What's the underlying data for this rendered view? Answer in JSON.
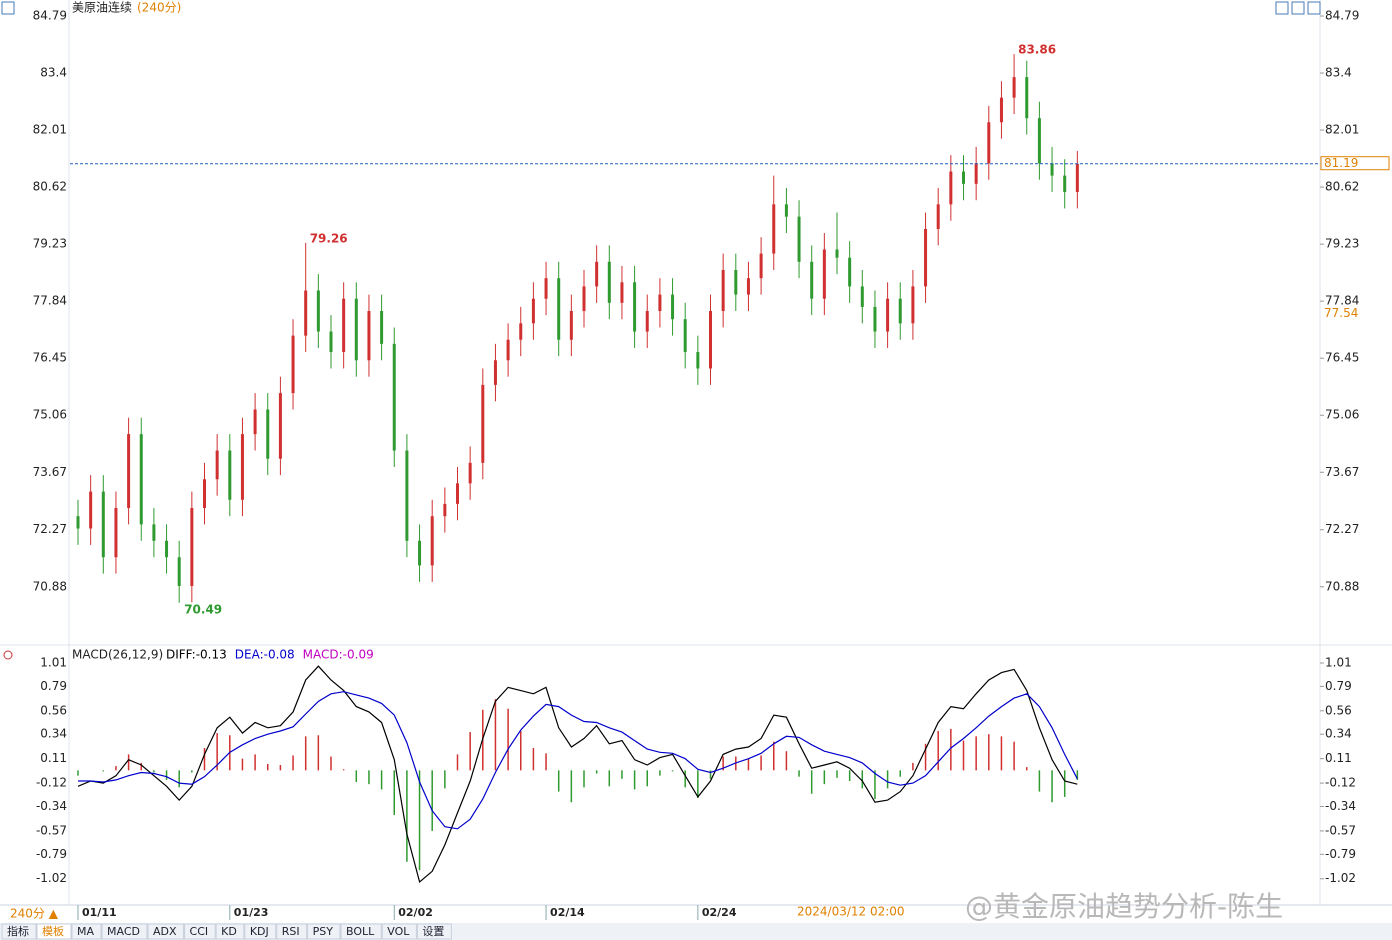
{
  "chart_data": [
    {
      "type": "candlestick",
      "title": "美原油连续",
      "subtitle": "(240分)",
      "up_color": "#d03030",
      "down_color": "#2f9a2f",
      "ylim": [
        70.07,
        84.79
      ],
      "yticks": [
        84.79,
        83.4,
        82.01,
        80.62,
        79.23,
        77.84,
        76.45,
        75.06,
        73.67,
        72.27,
        70.88
      ],
      "current_price": 81.19,
      "cursor_price": 77.54,
      "categories": [
        "01/11",
        null,
        null,
        null,
        null,
        null,
        null,
        null,
        null,
        null,
        null,
        null,
        "01/23",
        null,
        null,
        null,
        null,
        null,
        null,
        null,
        null,
        null,
        null,
        null,
        null,
        "02/02",
        null,
        null,
        null,
        null,
        null,
        null,
        null,
        null,
        null,
        null,
        null,
        "02/14",
        null,
        null,
        null,
        null,
        null,
        null,
        null,
        null,
        null,
        null,
        null,
        "02/24",
        null,
        null,
        null,
        null,
        null,
        null,
        null,
        null,
        null,
        null,
        null,
        null,
        null,
        null,
        null,
        null,
        null,
        null,
        null,
        null,
        null,
        null,
        null,
        null,
        null,
        null,
        null,
        null,
        null,
        null
      ],
      "open": [
        72.6,
        72.3,
        73.2,
        71.6,
        72.8,
        74.6,
        72.4,
        72.0,
        71.6,
        70.9,
        72.8,
        73.5,
        74.2,
        73.0,
        74.6,
        75.2,
        74.0,
        75.6,
        77.0,
        78.1,
        77.1,
        76.6,
        77.9,
        76.4,
        77.6,
        76.8,
        74.2,
        72.0,
        71.4,
        72.6,
        72.9,
        73.4,
        73.9,
        75.8,
        76.4,
        76.9,
        77.3,
        77.9,
        78.4,
        76.9,
        77.6,
        78.2,
        78.8,
        77.8,
        78.3,
        77.1,
        77.6,
        78.0,
        77.4,
        76.6,
        76.2,
        77.6,
        78.6,
        78.0,
        78.4,
        79.0,
        80.2,
        79.9,
        78.8,
        77.9,
        79.1,
        78.9,
        78.2,
        77.7,
        77.1,
        77.9,
        77.3,
        78.2,
        79.6,
        80.2,
        81.0,
        80.7,
        81.2,
        82.2,
        82.8,
        83.3,
        82.3,
        81.2,
        80.9,
        80.5
      ],
      "high": [
        73.0,
        73.6,
        73.6,
        73.2,
        75.0,
        75.0,
        72.8,
        72.4,
        72.0,
        73.2,
        73.9,
        74.6,
        74.6,
        75.0,
        75.6,
        75.6,
        76.0,
        77.4,
        79.26,
        78.5,
        77.5,
        78.3,
        78.3,
        78.0,
        78.0,
        77.2,
        74.6,
        72.4,
        73.0,
        73.3,
        73.8,
        74.3,
        76.2,
        76.8,
        77.3,
        77.7,
        78.3,
        78.8,
        78.8,
        78.0,
        78.6,
        79.2,
        79.2,
        78.7,
        78.7,
        78.0,
        78.4,
        78.4,
        77.8,
        77.0,
        78.0,
        79.0,
        79.0,
        78.8,
        79.4,
        80.9,
        80.6,
        80.3,
        79.2,
        79.5,
        80.0,
        79.3,
        78.6,
        78.1,
        78.3,
        78.3,
        78.6,
        80.0,
        80.6,
        81.4,
        81.4,
        81.6,
        82.6,
        83.2,
        83.86,
        83.7,
        82.7,
        81.6,
        81.3,
        81.5
      ],
      "low": [
        71.9,
        71.9,
        71.2,
        71.2,
        72.4,
        72.0,
        71.6,
        71.2,
        70.49,
        70.5,
        72.4,
        73.1,
        72.6,
        72.6,
        74.2,
        73.6,
        73.6,
        75.2,
        76.6,
        76.7,
        76.2,
        76.2,
        76.0,
        76.0,
        76.4,
        73.8,
        71.6,
        71.0,
        71.0,
        72.2,
        72.5,
        73.0,
        73.5,
        75.4,
        76.0,
        76.5,
        76.9,
        77.5,
        76.5,
        76.5,
        77.2,
        77.8,
        77.4,
        77.4,
        76.7,
        76.7,
        77.2,
        77.0,
        76.2,
        75.8,
        75.8,
        77.2,
        77.6,
        77.6,
        78.0,
        78.6,
        79.5,
        78.4,
        77.5,
        77.5,
        78.5,
        77.8,
        77.3,
        76.7,
        76.7,
        76.9,
        76.9,
        77.8,
        79.2,
        79.8,
        80.3,
        80.3,
        80.8,
        81.8,
        82.4,
        81.9,
        80.8,
        80.5,
        80.1,
        80.1
      ],
      "close": [
        72.3,
        73.2,
        71.6,
        72.8,
        74.6,
        72.4,
        72.0,
        71.6,
        70.9,
        72.8,
        73.5,
        74.2,
        73.0,
        74.6,
        75.2,
        74.0,
        75.6,
        77.0,
        78.1,
        77.1,
        76.6,
        77.9,
        76.4,
        77.6,
        76.8,
        74.2,
        72.0,
        71.4,
        72.6,
        72.9,
        73.4,
        73.9,
        75.8,
        76.4,
        76.9,
        77.3,
        77.9,
        78.4,
        76.9,
        77.6,
        78.2,
        78.8,
        77.8,
        78.3,
        77.1,
        77.6,
        78.0,
        77.4,
        76.6,
        76.2,
        77.6,
        78.6,
        78.0,
        78.4,
        79.0,
        80.2,
        79.9,
        78.8,
        77.9,
        79.1,
        78.9,
        78.2,
        77.7,
        77.1,
        77.9,
        77.3,
        78.2,
        79.6,
        80.2,
        81.0,
        80.7,
        81.2,
        82.2,
        82.8,
        83.3,
        82.3,
        81.2,
        80.9,
        80.5,
        81.19
      ]
    },
    {
      "type": "macd",
      "title": "MACD(26,12,9)",
      "up_color": "#d03030",
      "down_color": "#2f9a2f",
      "ylim": [
        -1.22,
        1.01
      ],
      "yticks": [
        1.01,
        0.79,
        0.56,
        0.34,
        0.11,
        -0.12,
        -0.34,
        -0.57,
        -0.79,
        -1.02
      ],
      "series": [
        {
          "name": "DIFF:-0.13",
          "color": "#000000",
          "values": [
            -0.15,
            -0.1,
            -0.12,
            -0.05,
            0.1,
            0.05,
            -0.05,
            -0.15,
            -0.28,
            -0.15,
            0.15,
            0.4,
            0.5,
            0.35,
            0.45,
            0.4,
            0.42,
            0.55,
            0.85,
            0.98,
            0.85,
            0.75,
            0.6,
            0.55,
            0.45,
            0.1,
            -0.6,
            -1.05,
            -0.95,
            -0.7,
            -0.4,
            -0.1,
            0.3,
            0.65,
            0.78,
            0.75,
            0.72,
            0.78,
            0.4,
            0.22,
            0.3,
            0.42,
            0.25,
            0.28,
            0.1,
            0.05,
            0.12,
            0.15,
            -0.05,
            -0.25,
            -0.1,
            0.15,
            0.2,
            0.22,
            0.3,
            0.52,
            0.5,
            0.25,
            0.02,
            0.05,
            0.08,
            0.02,
            -0.1,
            -0.3,
            -0.28,
            -0.2,
            -0.05,
            0.2,
            0.45,
            0.6,
            0.58,
            0.72,
            0.85,
            0.92,
            0.95,
            0.75,
            0.4,
            0.1,
            -0.1,
            -0.13
          ]
        },
        {
          "name": "DEA:-0.08",
          "color": "#0000cc",
          "values": [
            -0.1,
            -0.1,
            -0.11,
            -0.09,
            -0.05,
            -0.02,
            -0.03,
            -0.06,
            -0.12,
            -0.13,
            -0.06,
            0.05,
            0.17,
            0.24,
            0.3,
            0.34,
            0.37,
            0.41,
            0.53,
            0.65,
            0.72,
            0.74,
            0.71,
            0.68,
            0.63,
            0.52,
            0.26,
            -0.11,
            -0.38,
            -0.53,
            -0.55,
            -0.46,
            -0.27,
            -0.02,
            0.2,
            0.38,
            0.51,
            0.62,
            0.6,
            0.52,
            0.46,
            0.45,
            0.4,
            0.36,
            0.28,
            0.2,
            0.17,
            0.16,
            0.11,
            0.01,
            -0.02,
            0.02,
            0.07,
            0.11,
            0.16,
            0.25,
            0.32,
            0.31,
            0.24,
            0.18,
            0.15,
            0.12,
            0.07,
            -0.03,
            -0.11,
            -0.14,
            -0.12,
            -0.05,
            0.08,
            0.21,
            0.3,
            0.4,
            0.51,
            0.6,
            0.68,
            0.72,
            0.6,
            0.4,
            0.15,
            -0.08
          ]
        },
        {
          "name": "MACD:-0.09",
          "color": "#c000c0",
          "values": [
            -0.05,
            0,
            -0.01,
            0.04,
            0.15,
            0.07,
            -0.02,
            -0.09,
            -0.16,
            -0.02,
            0.21,
            0.35,
            0.33,
            0.11,
            0.15,
            0.06,
            0.05,
            0.14,
            0.32,
            0.33,
            0.13,
            0.01,
            -0.11,
            -0.13,
            -0.18,
            -0.42,
            -0.86,
            -0.94,
            -0.57,
            -0.17,
            0.15,
            0.36,
            0.57,
            0.67,
            0.58,
            0.37,
            0.21,
            0.16,
            -0.2,
            -0.3,
            -0.16,
            -0.03,
            -0.15,
            -0.08,
            -0.18,
            -0.15,
            -0.05,
            -0.01,
            -0.16,
            -0.26,
            -0.08,
            0.13,
            0.13,
            0.11,
            0.14,
            0.27,
            0.18,
            -0.06,
            -0.22,
            -0.13,
            -0.07,
            -0.1,
            -0.17,
            -0.27,
            -0.17,
            -0.06,
            0.07,
            0.25,
            0.37,
            0.39,
            0.28,
            0.32,
            0.34,
            0.32,
            0.27,
            0.03,
            -0.2,
            -0.3,
            -0.25,
            -0.09
          ]
        }
      ]
    }
  ],
  "toolbar": {
    "period": "240分 ▲",
    "tabs": [
      "指标",
      "模板",
      "MA",
      "MACD",
      "ADX",
      "CCI",
      "KD",
      "KDJ",
      "RSI",
      "PSY",
      "BOLL",
      "VOL",
      "设置"
    ]
  },
  "status": {
    "datetime": "2024/03/12 02:00",
    "watermark": "@黄金原油趋势分析-陈生"
  }
}
